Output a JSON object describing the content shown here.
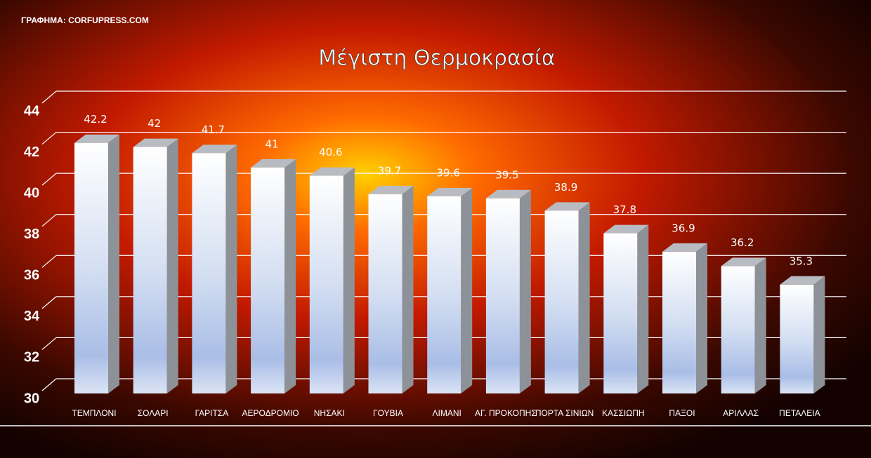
{
  "source": "ΓΡΑΦΗΜΑ: CORFUPRESS.COM",
  "chart_data": {
    "type": "bar3d",
    "title": "Μέγιστη Θερμοκρασία",
    "categories": [
      "ΤΕΜΠΛΟΝΙ",
      "ΣΟΛΑΡΙ",
      "ΓΑΡΙΤΣΑ",
      "ΑΕΡΟΔΡΟΜΙΟ",
      "ΝΗΣΑΚΙ",
      "ΓΟΥΒΙΑ",
      "ΛΙΜΑΝΙ",
      "ΑΓ. ΠΡΟΚΟΠΗΣ",
      "ΠΟΡΤΑ ΣΙΝΙΩΝ",
      "ΚΑΣΣΙΩΠΗ",
      "ΠΑΞΟΙ",
      "ΑΡΙΛΛΑΣ",
      "ΠΕΤΑΛΕΙΑ"
    ],
    "values": [
      42.2,
      42,
      41.7,
      41,
      40.6,
      39.7,
      39.6,
      39.5,
      38.9,
      37.8,
      36.9,
      36.2,
      35.3
    ],
    "ylim": [
      30,
      44
    ],
    "yticks": [
      30,
      32,
      34,
      36,
      38,
      40,
      42,
      44
    ],
    "grid": true
  }
}
